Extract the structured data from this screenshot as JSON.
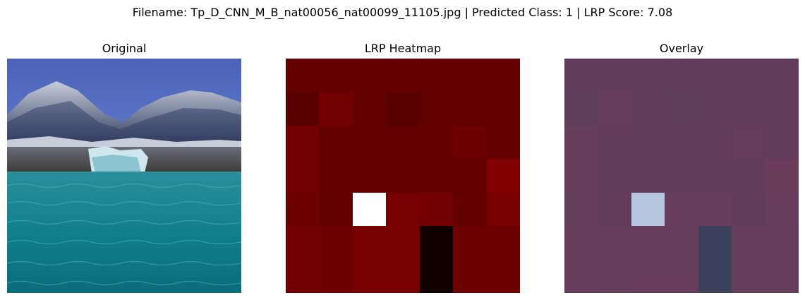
{
  "figure": {
    "title": "Filename: Tp_D_CNN_M_B_nat00056_nat00099_11105.jpg | Predicted Class: 1 | LRP Score: 7.08"
  },
  "panels": [
    {
      "title": "Original",
      "image": "photo of snowy mountains under a blue sky behind a rocky shore and turquoise sea water"
    },
    {
      "title": "LRP Heatmap",
      "colormap": "dark red heat"
    },
    {
      "title": "Overlay",
      "colormap": "purple blend"
    }
  ],
  "heatmap": {
    "rows": 7,
    "cols": 7,
    "values": [
      [
        0.3,
        0.3,
        0.3,
        0.3,
        0.3,
        0.3,
        0.3
      ],
      [
        0.28,
        0.33,
        0.3,
        0.28,
        0.3,
        0.3,
        0.3
      ],
      [
        0.33,
        0.3,
        0.3,
        0.3,
        0.3,
        0.32,
        0.3
      ],
      [
        0.33,
        0.3,
        0.3,
        0.3,
        0.3,
        0.3,
        0.36
      ],
      [
        0.32,
        0.3,
        1.0,
        0.34,
        0.33,
        0.3,
        0.34
      ],
      [
        0.33,
        0.32,
        0.34,
        0.34,
        0.0,
        0.32,
        0.32
      ],
      [
        0.33,
        0.32,
        0.34,
        0.34,
        0.0,
        0.32,
        0.32
      ]
    ]
  },
  "colors": {
    "heat_base": "#630000",
    "heat_bright": "#ffffff",
    "heat_dark": "#100000",
    "overlay_base": "#613d5b",
    "overlay_bright": "#b8c6e0",
    "overlay_dark": "#3b405c"
  }
}
